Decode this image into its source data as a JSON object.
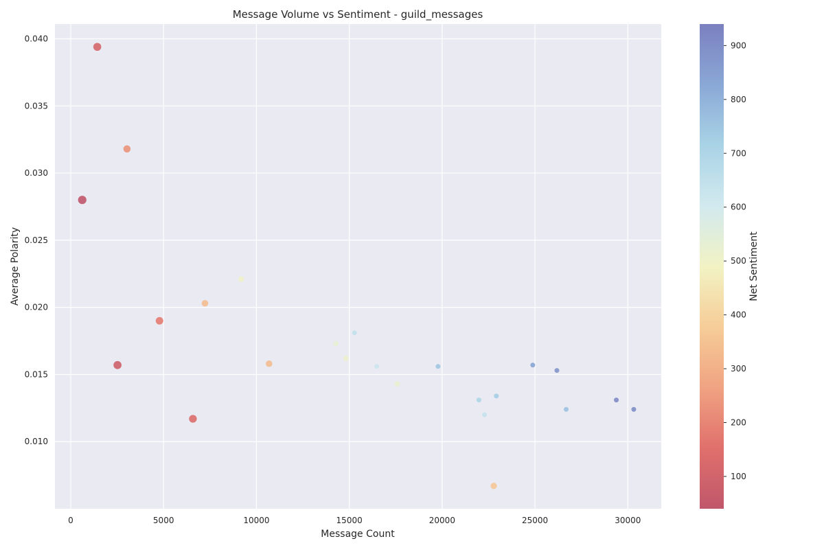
{
  "chart_data": {
    "type": "scatter",
    "title": "Message Volume vs Sentiment - guild_messages",
    "xlabel": "Message Count",
    "ylabel": "Average Polarity",
    "xlim": [
      -850,
      31800
    ],
    "ylim": [
      0.005,
      0.0411
    ],
    "x_ticks": [
      0,
      5000,
      10000,
      15000,
      20000,
      25000,
      30000
    ],
    "y_ticks": [
      0.01,
      0.015,
      0.02,
      0.025,
      0.03,
      0.035,
      0.04
    ],
    "x_tick_labels": [
      "0",
      "5000",
      "10000",
      "15000",
      "20000",
      "25000",
      "30000"
    ],
    "y_tick_labels": [
      "0.010",
      "0.015",
      "0.020",
      "0.025",
      "0.030",
      "0.035",
      "0.040"
    ],
    "grid": true,
    "colorbar": {
      "label": "Net Sentiment",
      "range": [
        40,
        940
      ],
      "ticks": [
        100,
        200,
        300,
        400,
        500,
        600,
        700,
        800,
        900
      ],
      "tick_labels": [
        "100",
        "200",
        "300",
        "400",
        "500",
        "600",
        "700",
        "800",
        "900"
      ],
      "colormap": "Spectral",
      "colors": [
        "#c0576b",
        "#e0706c",
        "#f0a382",
        "#f6cd98",
        "#f2f3c4",
        "#d2e9ef",
        "#a9d3e6",
        "#8aa8d6",
        "#7b80bf"
      ]
    },
    "points": [
      {
        "x": 620,
        "y": 0.028,
        "net": 40
      },
      {
        "x": 1430,
        "y": 0.0394,
        "net": 110
      },
      {
        "x": 2520,
        "y": 0.0157,
        "net": 90
      },
      {
        "x": 3030,
        "y": 0.0318,
        "net": 230
      },
      {
        "x": 4780,
        "y": 0.019,
        "net": 180
      },
      {
        "x": 6580,
        "y": 0.0117,
        "net": 140
      },
      {
        "x": 7230,
        "y": 0.0203,
        "net": 330
      },
      {
        "x": 9180,
        "y": 0.0221,
        "net": 500
      },
      {
        "x": 10680,
        "y": 0.0158,
        "net": 330
      },
      {
        "x": 14280,
        "y": 0.0173,
        "net": 530
      },
      {
        "x": 14820,
        "y": 0.0162,
        "net": 510
      },
      {
        "x": 15280,
        "y": 0.0181,
        "net": 650
      },
      {
        "x": 16480,
        "y": 0.0156,
        "net": 620
      },
      {
        "x": 17580,
        "y": 0.0143,
        "net": 520
      },
      {
        "x": 19780,
        "y": 0.0156,
        "net": 750
      },
      {
        "x": 21980,
        "y": 0.0131,
        "net": 700
      },
      {
        "x": 22280,
        "y": 0.012,
        "net": 640
      },
      {
        "x": 22780,
        "y": 0.0067,
        "net": 360
      },
      {
        "x": 22920,
        "y": 0.0134,
        "net": 730
      },
      {
        "x": 24880,
        "y": 0.0157,
        "net": 840
      },
      {
        "x": 26180,
        "y": 0.0153,
        "net": 880
      },
      {
        "x": 26680,
        "y": 0.0124,
        "net": 760
      },
      {
        "x": 29380,
        "y": 0.0131,
        "net": 910
      },
      {
        "x": 30320,
        "y": 0.0124,
        "net": 900
      }
    ]
  }
}
